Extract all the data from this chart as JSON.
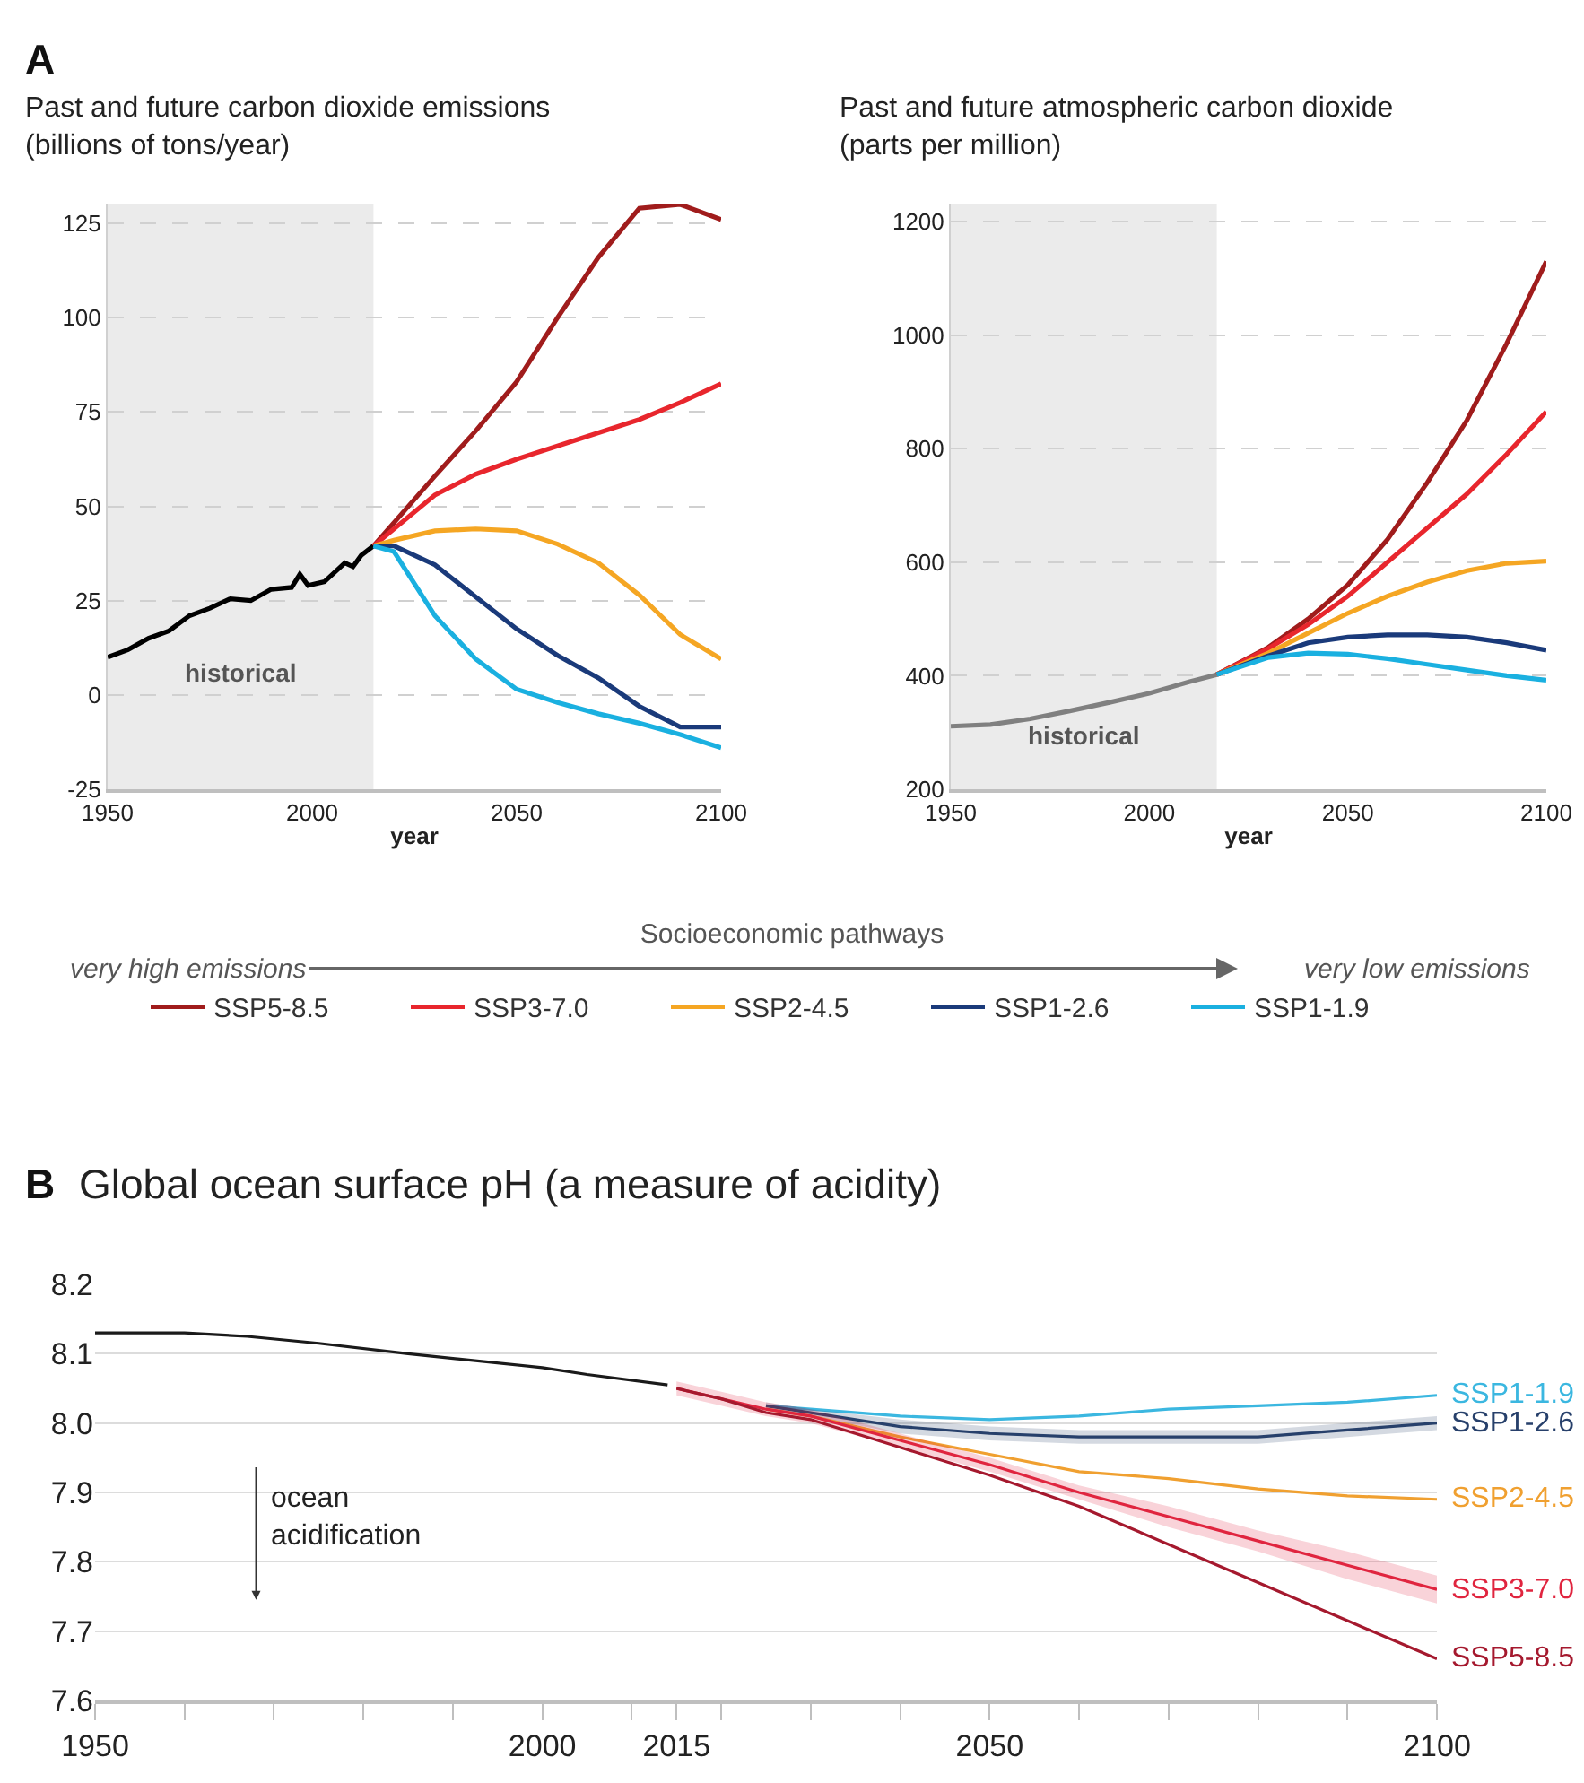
{
  "chart_data": [
    {
      "type": "line",
      "title": "Past and future carbon dioxide emissions",
      "subtitle": "(billions of tons/year)",
      "xlabel": "year",
      "legend_title": "Socioeconomic pathways",
      "legend": "bottom",
      "grid": "y",
      "marker": "none",
      "line_style": "solid",
      "annotations": [
        "A",
        "very high emissions",
        "very low emissions"
      ],
      "xlim": [
        1950,
        2100
      ],
      "xticks": [
        1950,
        2000,
        2050,
        2100
      ],
      "ylim": [
        -25,
        130
      ],
      "yticks": [
        -25,
        0,
        25,
        50,
        75,
        100,
        125
      ],
      "bands": [
        {
          "axis": "x",
          "from": 1950,
          "to": 2015,
          "label": "historical",
          "color": "#ebebeb"
        }
      ],
      "series": [
        {
          "color": "#000000",
          "x": [
            1950,
            1955,
            1960,
            1965,
            1970,
            1975,
            1980,
            1985,
            1990,
            1995,
            1997,
            1999,
            2003,
            2008,
            2010,
            2012,
            2015
          ],
          "values": [
            10,
            12,
            15,
            17,
            21,
            23,
            25.5,
            25,
            28,
            28.5,
            32,
            29,
            30,
            35,
            34,
            37,
            39.5
          ]
        },
        {
          "name": "SSP5-8.5",
          "color": "#a01c1c",
          "x": [
            2015,
            2030,
            2040,
            2050,
            2060,
            2070,
            2080,
            2090,
            2100
          ],
          "values": [
            39.5,
            58,
            70,
            83,
            100,
            116,
            129,
            130,
            126
          ]
        },
        {
          "name": "SSP3-7.0",
          "color": "#e8262d",
          "x": [
            2015,
            2020,
            2030,
            2040,
            2050,
            2060,
            2070,
            2080,
            2090,
            2100
          ],
          "values": [
            39.5,
            44,
            53,
            58.5,
            62.5,
            66,
            69.5,
            73,
            77.5,
            82.5
          ]
        },
        {
          "name": "SSP2-4.5",
          "color": "#f5a623",
          "x": [
            2015,
            2020,
            2030,
            2040,
            2050,
            2060,
            2070,
            2080,
            2090,
            2100
          ],
          "values": [
            39.5,
            41,
            43.5,
            44,
            43.5,
            40,
            35,
            26.5,
            16,
            9.5
          ]
        },
        {
          "name": "SSP1-2.6",
          "color": "#1a3a7a",
          "x": [
            2015,
            2020,
            2030,
            2040,
            2050,
            2060,
            2070,
            2080,
            2090,
            2100
          ],
          "values": [
            39.5,
            39.5,
            34.5,
            26,
            17.5,
            10.5,
            4.5,
            -3,
            -8.5,
            -8.5
          ]
        },
        {
          "name": "SSP1-1.9",
          "color": "#1ab0e0",
          "x": [
            2015,
            2020,
            2030,
            2040,
            2050,
            2060,
            2070,
            2080,
            2090,
            2100
          ],
          "values": [
            39.5,
            38,
            21,
            9.5,
            1.5,
            -2,
            -5,
            -7.5,
            -10.5,
            -14
          ]
        }
      ]
    },
    {
      "type": "line",
      "title": "Past and future atmospheric carbon dioxide",
      "subtitle": "(parts per million)",
      "xlabel": "year",
      "grid": "y",
      "marker": "none",
      "line_style": "solid",
      "xlim": [
        1950,
        2100
      ],
      "xticks": [
        1950,
        2000,
        2050,
        2100
      ],
      "ylim": [
        200,
        1230
      ],
      "yticks": [
        200,
        400,
        600,
        800,
        1000,
        1200
      ],
      "bands": [
        {
          "axis": "x",
          "from": 1950,
          "to": 2017,
          "label": "historical",
          "color": "#ebebeb"
        }
      ],
      "series": [
        {
          "color": "#808080",
          "x": [
            1950,
            1960,
            1970,
            1980,
            1990,
            2000,
            2010,
            2017
          ],
          "values": [
            311,
            314,
            324,
            338,
            353,
            369,
            389,
            402
          ]
        },
        {
          "color": "#a01c1c",
          "x": [
            2017,
            2030,
            2040,
            2050,
            2060,
            2070,
            2080,
            2090,
            2100
          ],
          "values": [
            402,
            450,
            500,
            560,
            640,
            740,
            850,
            985,
            1130
          ]
        },
        {
          "color": "#e8262d",
          "x": [
            2017,
            2030,
            2040,
            2050,
            2060,
            2070,
            2080,
            2090,
            2100
          ],
          "values": [
            402,
            448,
            490,
            540,
            600,
            660,
            720,
            790,
            865
          ]
        },
        {
          "color": "#f5a623",
          "x": [
            2017,
            2030,
            2040,
            2050,
            2060,
            2070,
            2080,
            2090,
            2100
          ],
          "values": [
            402,
            440,
            475,
            510,
            540,
            565,
            585,
            598,
            602
          ]
        },
        {
          "color": "#1a3a7a",
          "x": [
            2017,
            2030,
            2040,
            2050,
            2060,
            2070,
            2080,
            2090,
            2100
          ],
          "values": [
            402,
            435,
            458,
            468,
            472,
            472,
            468,
            458,
            445
          ]
        },
        {
          "color": "#1ab0e0",
          "x": [
            2017,
            2030,
            2040,
            2050,
            2060,
            2070,
            2080,
            2090,
            2100
          ],
          "values": [
            402,
            432,
            440,
            438,
            430,
            420,
            410,
            400,
            392
          ]
        }
      ]
    },
    {
      "type": "line",
      "title": "Global ocean surface pH (a measure of acidity)",
      "grid": "y",
      "marker": "none",
      "line_style": "solid",
      "annotations": [
        "B",
        "ocean acidification"
      ],
      "xlim": [
        1950,
        2100
      ],
      "xticks": [
        1950,
        {
          "value": 1960,
          "label": null
        },
        {
          "value": 1970,
          "label": null
        },
        {
          "value": 1980,
          "label": null
        },
        {
          "value": 1990,
          "label": null
        },
        2000,
        {
          "value": 2010,
          "label": null
        },
        2015,
        {
          "value": 2020,
          "label": null
        },
        {
          "value": 2030,
          "label": null
        },
        {
          "value": 2040,
          "label": null
        },
        2050,
        {
          "value": 2060,
          "label": null
        },
        {
          "value": 2070,
          "label": null
        },
        {
          "value": 2080,
          "label": null
        },
        {
          "value": 2090,
          "label": null
        },
        2100
      ],
      "ylim": [
        7.6,
        8.2
      ],
      "yticks": [
        7.6,
        7.7,
        7.8,
        7.9,
        {
          "value": 8,
          "label": "8.0"
        },
        8.1,
        8.2
      ],
      "series": [
        {
          "color": "#1a1a1a",
          "x": [
            1950,
            1960,
            1967,
            1975,
            1985,
            2000,
            2005,
            2014
          ],
          "values": [
            8.13,
            8.13,
            8.125,
            8.115,
            8.1,
            8.08,
            8.07,
            8.055
          ]
        },
        {
          "name": "SSP1-1.9",
          "color": "#3bb7e0",
          "x": [
            2025,
            2030,
            2040,
            2050,
            2060,
            2070,
            2080,
            2090,
            2100
          ],
          "values": [
            8.025,
            8.02,
            8.01,
            8.005,
            8.01,
            8.02,
            8.025,
            8.03,
            8.04
          ]
        },
        {
          "name": "SSP1-2.6",
          "color": "#27406b",
          "x": [
            2025,
            2030,
            2040,
            2050,
            2060,
            2070,
            2080,
            2090,
            2100
          ],
          "values": [
            8.025,
            8.015,
            7.995,
            7.985,
            7.98,
            7.98,
            7.98,
            7.99,
            8.0
          ],
          "lower": [
            8.02,
            8.01,
            7.985,
            7.975,
            7.97,
            7.97,
            7.97,
            7.98,
            7.99
          ],
          "upper": [
            8.03,
            8.02,
            8.005,
            7.995,
            7.99,
            7.99,
            7.99,
            8.0,
            8.01
          ]
        },
        {
          "name": "SSP2-4.5",
          "color": "#f0a030",
          "x": [
            2025,
            2030,
            2040,
            2050,
            2060,
            2070,
            2080,
            2090,
            2100
          ],
          "values": [
            8.02,
            8.01,
            7.98,
            7.955,
            7.93,
            7.92,
            7.905,
            7.895,
            7.89
          ]
        },
        {
          "name": "SSP3-7.0",
          "color": "#e0253f",
          "x": [
            2015,
            2020,
            2025,
            2030,
            2040,
            2050,
            2060,
            2070,
            2080,
            2090,
            2100
          ],
          "values": [
            8.05,
            8.035,
            8.02,
            8.01,
            7.975,
            7.94,
            7.9,
            7.865,
            7.83,
            7.795,
            7.76
          ],
          "lower": [
            8.04,
            8.025,
            8.01,
            8.0,
            7.965,
            7.93,
            7.89,
            7.85,
            7.815,
            7.775,
            7.74
          ],
          "upper": [
            8.06,
            8.045,
            8.03,
            8.02,
            7.985,
            7.95,
            7.91,
            7.88,
            7.845,
            7.815,
            7.78
          ]
        },
        {
          "name": "SSP5-8.5",
          "color": "#a5192e",
          "x": [
            2015,
            2020,
            2025,
            2030,
            2040,
            2050,
            2060,
            2070,
            2080,
            2090,
            2100
          ],
          "values": [
            8.05,
            8.035,
            8.015,
            8.005,
            7.965,
            7.925,
            7.88,
            7.825,
            7.77,
            7.715,
            7.66
          ]
        }
      ]
    }
  ]
}
